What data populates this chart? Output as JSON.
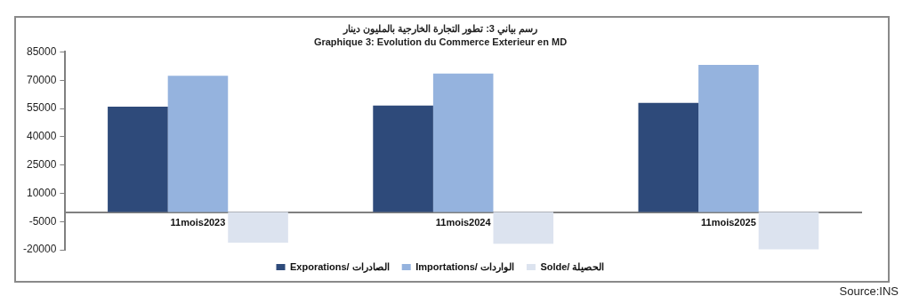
{
  "chart_data": {
    "type": "bar",
    "title": "رسم بياني 3: تطور التجارة الخارجية بالمليون دينار",
    "subtitle": "Graphique 3: Evolution du Commerce Exterieur en MD",
    "categories": [
      "11mois2023",
      "11mois2024",
      "11mois2025"
    ],
    "series": [
      {
        "name": "Exporations/ الصادرات",
        "color": "#2e4a7a",
        "values": [
          55900,
          56500,
          57900
        ]
      },
      {
        "name": "Importations/ الواردات",
        "color": "#95b3de",
        "values": [
          72300,
          73500,
          78100
        ]
      },
      {
        "name": "Solde/ الحصيلة",
        "color": "#dce3ef",
        "values": [
          -16200,
          -16800,
          -19800
        ]
      }
    ],
    "ylim": [
      -20000,
      85000
    ],
    "yticks": [
      -20000,
      -5000,
      10000,
      25000,
      40000,
      55000,
      70000,
      85000
    ],
    "grid": false,
    "legend": "bottom",
    "annotations": [
      "Source:INS"
    ]
  }
}
